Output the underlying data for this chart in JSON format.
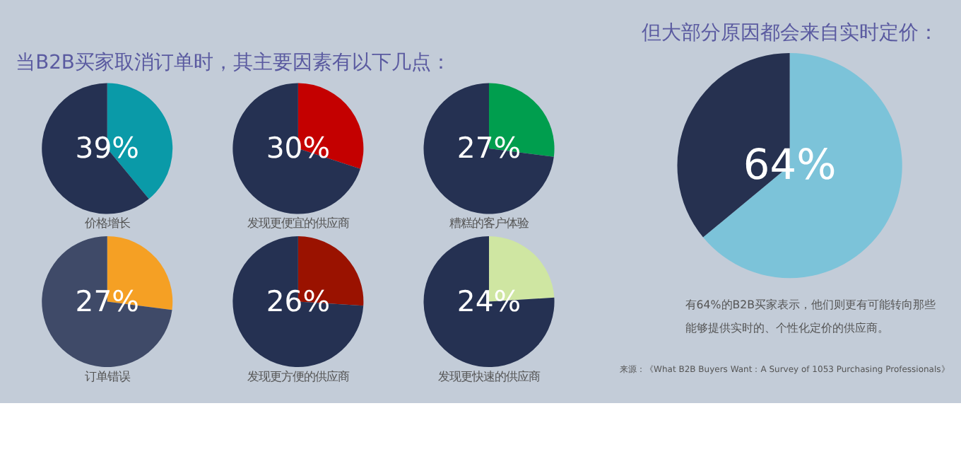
{
  "chart_data": [
    {
      "type": "other",
      "title": "当B2B买家取消订单时，其主要因素有以下几点："
    },
    {
      "type": "pie",
      "xlabel": "价格增长",
      "categories": [
        null,
        null
      ],
      "values": [
        39,
        61
      ],
      "colors": [
        "#0a9aa8",
        "#253152"
      ],
      "value_labels": [
        "39%",
        null
      ]
    },
    {
      "type": "pie",
      "xlabel": "发现更便宜的供应商",
      "categories": [
        null,
        null
      ],
      "values": [
        30,
        70
      ],
      "colors": [
        "#c40000",
        "#253152"
      ],
      "value_labels": [
        "30%",
        null
      ]
    },
    {
      "type": "pie",
      "xlabel": "糟糕的客户体验",
      "categories": [
        null,
        null
      ],
      "values": [
        27,
        73
      ],
      "colors": [
        "#009e4e",
        "#253152"
      ],
      "value_labels": [
        "27%",
        null
      ]
    },
    {
      "type": "pie",
      "xlabel": "订单错误",
      "categories": [
        null,
        null
      ],
      "values": [
        27,
        73
      ],
      "colors": [
        "#f5a024",
        "#3f4a68"
      ],
      "value_labels": [
        "27%",
        null
      ]
    },
    {
      "type": "pie",
      "xlabel": "发现更方便的供应商",
      "categories": [
        null,
        null
      ],
      "values": [
        26,
        74
      ],
      "colors": [
        "#9a1200",
        "#253152"
      ],
      "value_labels": [
        "26%",
        null
      ]
    },
    {
      "type": "pie",
      "xlabel": "发现更快速的供应商",
      "categories": [
        null,
        null
      ],
      "values": [
        24,
        76
      ],
      "colors": [
        "#cfe6a2",
        "#253152"
      ],
      "value_labels": [
        "24%",
        null
      ]
    },
    {
      "type": "pie",
      "title": "但大部分原因都会来自实时定价：",
      "categories": [
        null,
        null
      ],
      "values": [
        64,
        36
      ],
      "colors": [
        "#7cc3d9",
        "#263150"
      ],
      "value_labels": [
        "64%",
        null
      ],
      "annotations": [
        "有64%的B2B买家表示，他们则更有可能转向那些能够提供实时的、个性化定价的供应商。",
        "来源：《What B2B Buyers Want：A Survey of 1053 Purchasing Professionals》"
      ]
    }
  ]
}
